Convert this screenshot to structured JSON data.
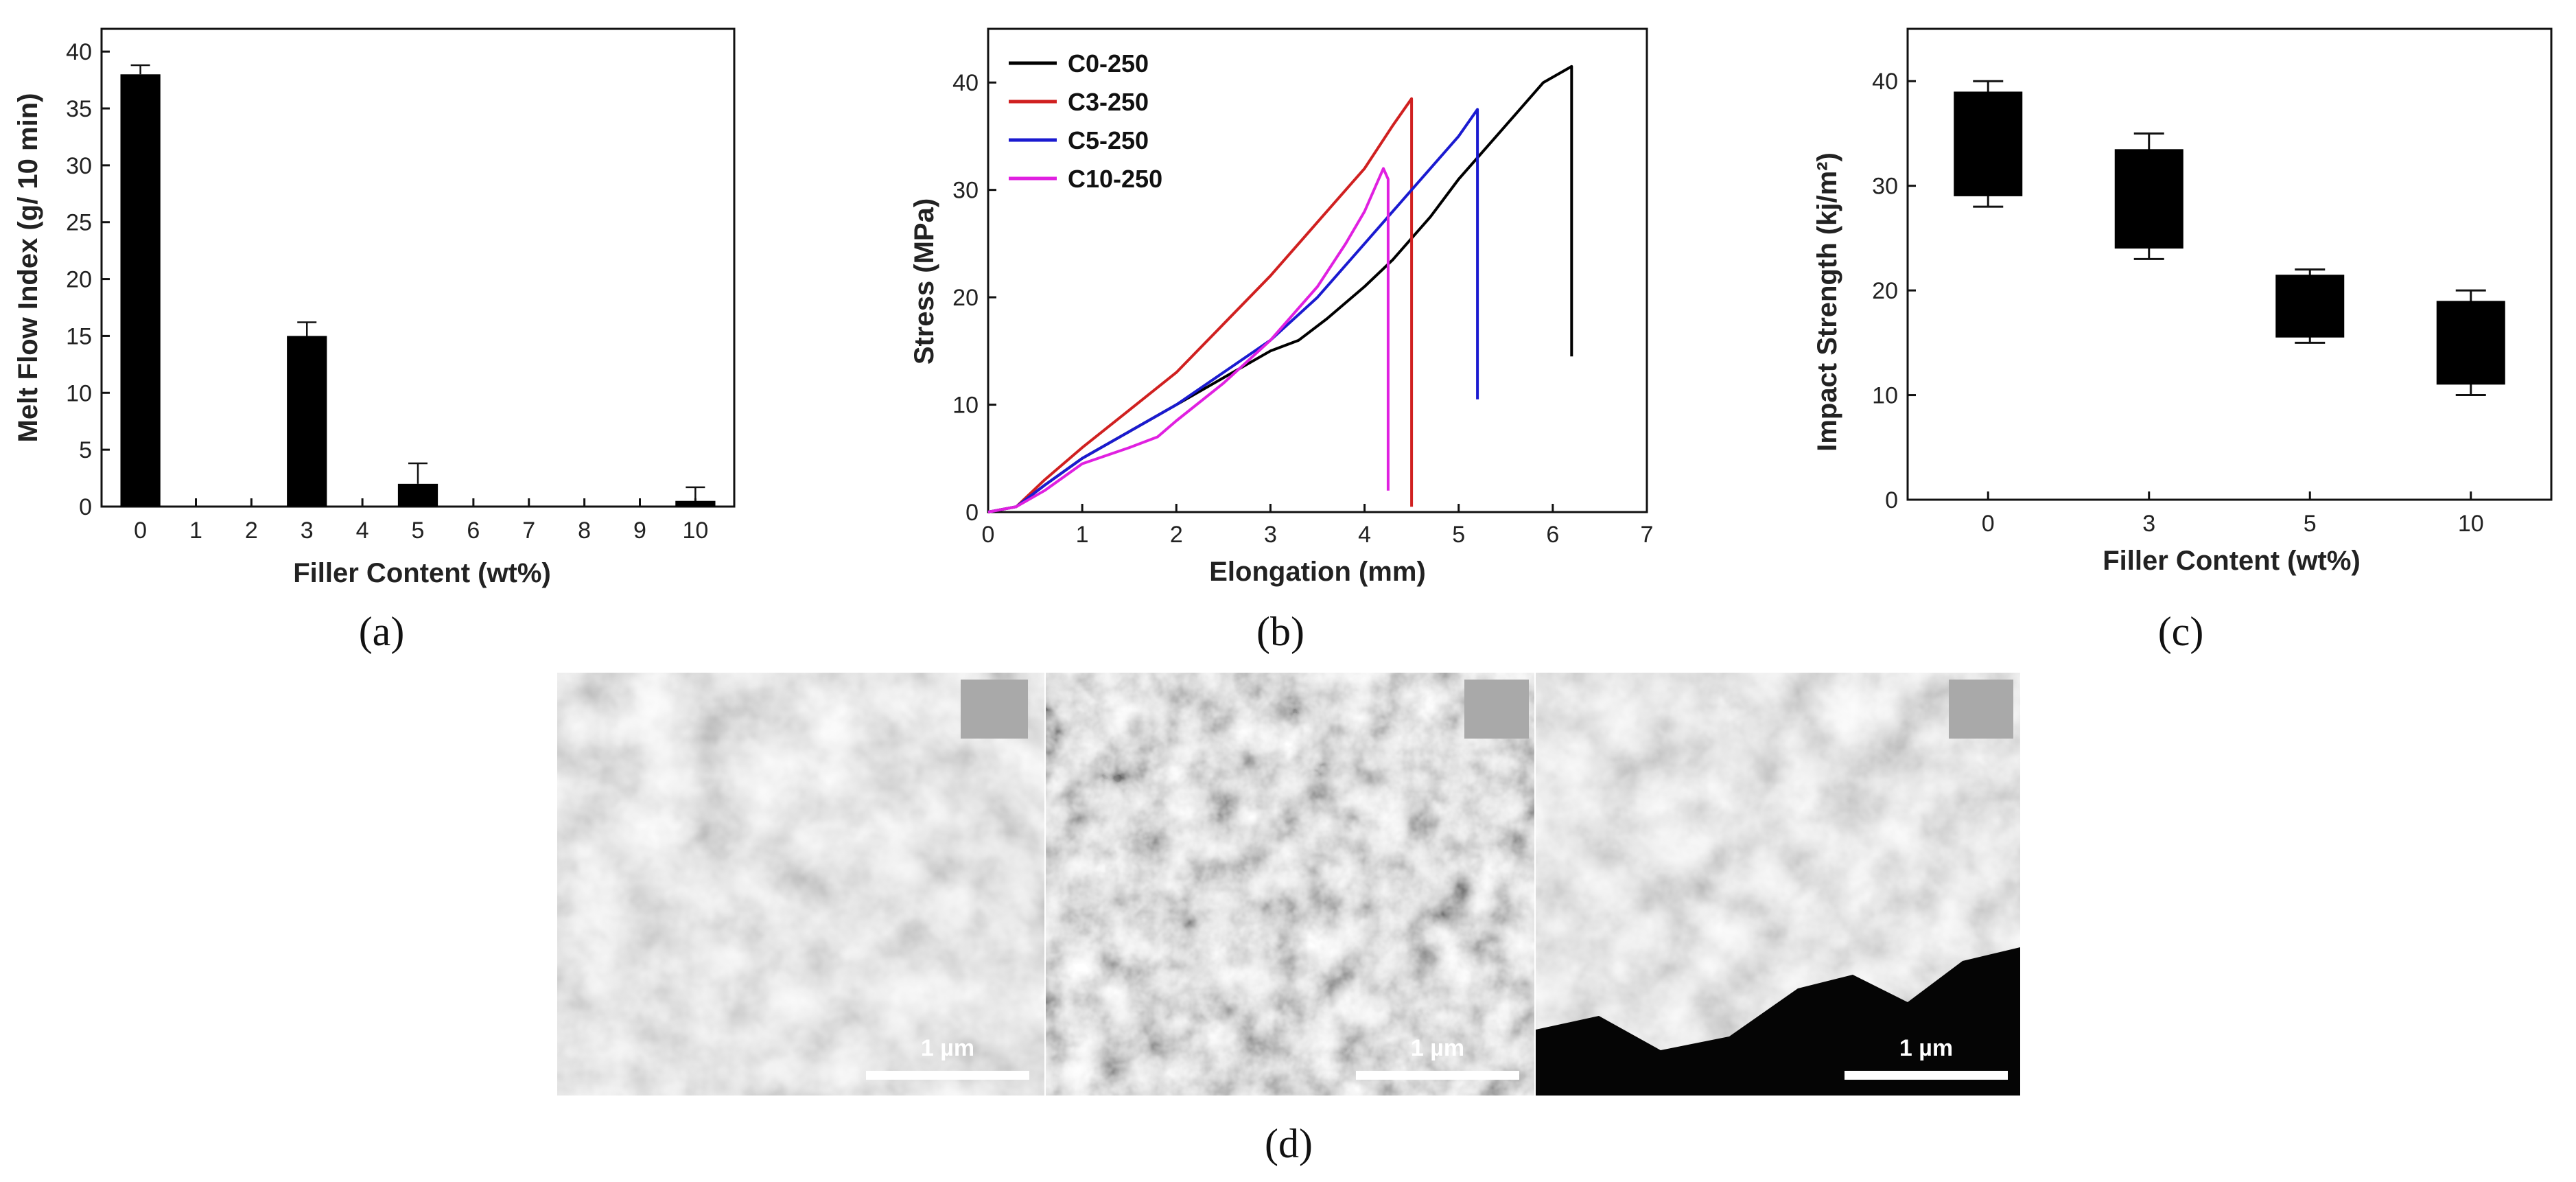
{
  "panel_labels": [
    "(a)",
    "(b)",
    "(c)",
    "(d)"
  ],
  "sem": {
    "scale_label": "1 µm",
    "count": 3
  },
  "chart_data": [
    {
      "type": "bar",
      "xlabel": "Filler Content (wt%)",
      "ylabel": "Melt Flow Index (g/ 10 min)",
      "categories": [
        "0",
        "1",
        "2",
        "3",
        "4",
        "5",
        "6",
        "7",
        "8",
        "9",
        "10"
      ],
      "x_ticks": [
        0,
        1,
        2,
        3,
        4,
        5,
        6,
        7,
        8,
        9,
        10
      ],
      "xlim": [
        -0.7,
        10.7
      ],
      "ylim": [
        0,
        42
      ],
      "y_ticks": [
        0,
        5,
        10,
        15,
        20,
        25,
        30,
        35,
        40
      ],
      "bars": [
        {
          "x": 0,
          "value": 38,
          "error": 0.8
        },
        {
          "x": 3,
          "value": 15,
          "error": 1.2
        },
        {
          "x": 5,
          "value": 2,
          "error": 1.8
        },
        {
          "x": 10,
          "value": 0.5,
          "error": 1.2
        }
      ],
      "grid": false,
      "color": "#000000"
    },
    {
      "type": "line",
      "xlabel": "Elongation (mm)",
      "ylabel": "Stress (MPa)",
      "xlim": [
        0,
        7
      ],
      "ylim": [
        0,
        45
      ],
      "x_ticks": [
        0,
        1,
        2,
        3,
        4,
        5,
        6,
        7
      ],
      "y_ticks": [
        0,
        10,
        20,
        30,
        40
      ],
      "legend_position": "top-left",
      "grid": false,
      "series": [
        {
          "name": "C0-250",
          "color": "#000000",
          "points": [
            [
              0,
              0
            ],
            [
              0.3,
              0.5
            ],
            [
              0.6,
              2.5
            ],
            [
              1,
              5
            ],
            [
              1.5,
              7.5
            ],
            [
              2,
              10
            ],
            [
              2.5,
              12.5
            ],
            [
              3,
              15
            ],
            [
              3.3,
              16
            ],
            [
              3.6,
              18
            ],
            [
              4,
              21
            ],
            [
              4.3,
              23.5
            ],
            [
              4.7,
              27.5
            ],
            [
              5,
              31
            ],
            [
              5.3,
              34
            ],
            [
              5.6,
              37
            ],
            [
              5.9,
              40
            ],
            [
              6.2,
              41.5
            ],
            [
              6.2,
              14.5
            ]
          ]
        },
        {
          "name": "C3-250",
          "color": "#d02020",
          "points": [
            [
              0,
              0
            ],
            [
              0.3,
              0.5
            ],
            [
              0.6,
              3
            ],
            [
              1,
              6
            ],
            [
              1.5,
              9.5
            ],
            [
              2,
              13
            ],
            [
              2.5,
              17.5
            ],
            [
              3,
              22
            ],
            [
              3.5,
              27
            ],
            [
              4,
              32
            ],
            [
              4.3,
              36
            ],
            [
              4.5,
              38.5
            ],
            [
              4.5,
              0.5
            ]
          ]
        },
        {
          "name": "C5-250",
          "color": "#1a1ad0",
          "points": [
            [
              0,
              0
            ],
            [
              0.3,
              0.5
            ],
            [
              0.6,
              2.5
            ],
            [
              1,
              5
            ],
            [
              1.5,
              7.5
            ],
            [
              2,
              10
            ],
            [
              2.5,
              13
            ],
            [
              3,
              16
            ],
            [
              3.5,
              20
            ],
            [
              4,
              25
            ],
            [
              4.5,
              30
            ],
            [
              5,
              35
            ],
            [
              5.2,
              37.5
            ],
            [
              5.2,
              10.5
            ]
          ]
        },
        {
          "name": "C10-250",
          "color": "#e020e0",
          "points": [
            [
              0,
              0
            ],
            [
              0.3,
              0.5
            ],
            [
              0.6,
              2
            ],
            [
              1,
              4.5
            ],
            [
              1.5,
              6
            ],
            [
              1.8,
              7
            ],
            [
              2,
              8.5
            ],
            [
              2.5,
              12
            ],
            [
              3,
              16
            ],
            [
              3.5,
              21
            ],
            [
              3.8,
              25
            ],
            [
              4,
              28
            ],
            [
              4.2,
              32
            ],
            [
              4.25,
              31
            ],
            [
              4.25,
              2
            ]
          ]
        }
      ]
    },
    {
      "type": "box",
      "xlabel": "Filler Content (wt%)",
      "ylabel": "Impact Strength (kj/m²)",
      "ylim": [
        0,
        45
      ],
      "y_ticks": [
        0,
        10,
        20,
        30,
        40
      ],
      "categories": [
        "0",
        "3",
        "5",
        "10"
      ],
      "boxes": [
        {
          "category": "0",
          "whisker_low": 28,
          "q1": 29,
          "q3": 39,
          "whisker_high": 40
        },
        {
          "category": "3",
          "whisker_low": 23,
          "q1": 24,
          "q3": 33.5,
          "whisker_high": 35
        },
        {
          "category": "5",
          "whisker_low": 15,
          "q1": 15.5,
          "q3": 21.5,
          "whisker_high": 22
        },
        {
          "category": "10",
          "whisker_low": 10,
          "q1": 11,
          "q3": 19,
          "whisker_high": 20
        }
      ],
      "grid": false,
      "color": "#000000"
    }
  ]
}
